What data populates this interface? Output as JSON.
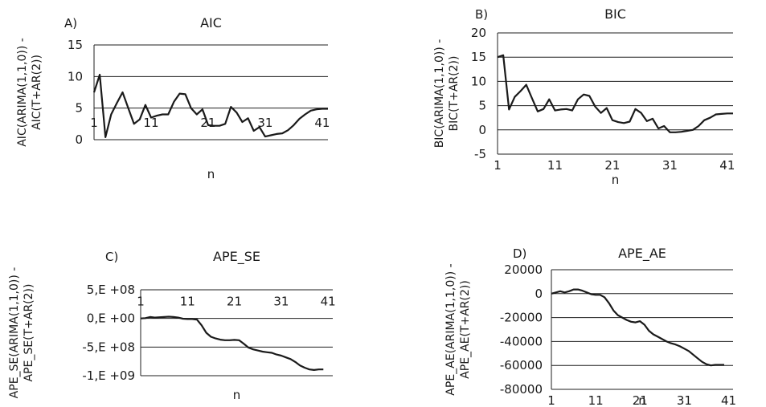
{
  "chart_data": [
    {
      "type": "line",
      "panel_label": "A)",
      "title": "AIC",
      "xlabel": "n",
      "ylabel_lines": [
        "AIC(ARIMA(1,1,0)) -",
        "AIC(T+AR(2))"
      ],
      "x_tick_labels": [
        "1",
        "11",
        "21",
        "31",
        "41"
      ],
      "y_tick_labels": [
        "15",
        "10",
        "5",
        "0"
      ],
      "y_ticks": [
        15,
        10,
        5,
        0
      ],
      "ylim": [
        0,
        15
      ],
      "x_axis_at": 0,
      "x_labels_at": "top",
      "grid": "horizontal",
      "values": [
        7.5,
        10.3,
        0.4,
        4.0,
        5.8,
        7.5,
        5.0,
        2.5,
        3.2,
        5.5,
        3.5,
        3.8,
        4.0,
        4.0,
        6.0,
        7.3,
        7.2,
        5.0,
        4.0,
        4.8,
        2.3,
        2.2,
        2.2,
        2.5,
        5.2,
        4.3,
        2.8,
        3.4,
        1.4,
        2.0,
        0.5,
        0.7,
        0.9,
        1.0,
        1.5,
        2.3,
        3.3,
        4.0,
        4.6,
        4.8,
        4.9,
        4.9
      ]
    },
    {
      "type": "line",
      "panel_label": "B)",
      "title": "BIC",
      "xlabel": "n",
      "ylabel_lines": [
        "BIC(ARIMA(1,1,0)) -",
        "BIC(T+AR(2))"
      ],
      "x_tick_labels": [
        "1",
        "11",
        "21",
        "31",
        "41"
      ],
      "y_tick_labels": [
        "20",
        "15",
        "10",
        "5",
        "0",
        "-5"
      ],
      "y_ticks": [
        20,
        15,
        10,
        5,
        0,
        -5
      ],
      "ylim": [
        -5,
        20
      ],
      "x_axis_at": 0,
      "x_labels_at": "bottom",
      "grid": "horizontal",
      "values": [
        15.0,
        15.4,
        4.2,
        6.8,
        8.0,
        9.3,
        6.5,
        3.8,
        4.3,
        6.3,
        4.0,
        4.2,
        4.3,
        4.0,
        6.3,
        7.3,
        7.0,
        4.8,
        3.5,
        4.5,
        2.0,
        1.6,
        1.4,
        1.7,
        4.3,
        3.5,
        1.8,
        2.3,
        0.3,
        0.8,
        -0.5,
        -0.5,
        -0.4,
        -0.2,
        0.0,
        0.8,
        2.0,
        2.5,
        3.2,
        3.3,
        3.4,
        3.4
      ]
    },
    {
      "type": "line",
      "panel_label": "C)",
      "title": "APE_SE",
      "xlabel": "n",
      "ylabel_lines": [
        "APE_SE(ARIMA(1,1,0)) -",
        "APE_SE(T+AR(2))"
      ],
      "x_tick_labels": [
        "1",
        "11",
        "21",
        "31",
        "41"
      ],
      "y_tick_labels": [
        "5,E +08",
        "0,E +00",
        "-5,E +08",
        "-1,E +09"
      ],
      "y_ticks": [
        500000000,
        0,
        -500000000,
        -1000000000
      ],
      "ylim": [
        -1000000000,
        500000000
      ],
      "x_axis_at": 0,
      "x_labels_at": "top",
      "grid": "horizontal",
      "values": [
        0,
        5000000,
        25000000,
        15000000,
        20000000,
        25000000,
        30000000,
        25000000,
        15000000,
        -5000000,
        -10000000,
        -10000000,
        -20000000,
        -120000000,
        -250000000,
        -320000000,
        -350000000,
        -370000000,
        -380000000,
        -380000000,
        -375000000,
        -380000000,
        -440000000,
        -510000000,
        -540000000,
        -560000000,
        -580000000,
        -590000000,
        -600000000,
        -630000000,
        -650000000,
        -680000000,
        -710000000,
        -760000000,
        -820000000,
        -860000000,
        -890000000,
        -900000000,
        -890000000,
        -890000000
      ]
    },
    {
      "type": "line",
      "panel_label": "D)",
      "title": "APE_AE",
      "xlabel": "n",
      "ylabel_lines": [
        "APE_AE(ARIMA(1,1,0)) -",
        "APE_AE(T+AR(2))"
      ],
      "x_tick_labels": [
        "1",
        "11",
        "21",
        "31",
        "41"
      ],
      "y_tick_labels": [
        "20000",
        "0",
        "-20000",
        "-40000",
        "-60000",
        "-80000"
      ],
      "y_ticks": [
        20000,
        0,
        -20000,
        -40000,
        -60000,
        -80000
      ],
      "ylim": [
        -80000,
        20000
      ],
      "x_axis_at": 0,
      "x_labels_at": "bottom",
      "grid": "horizontal",
      "values": [
        0,
        1000,
        2000,
        1000,
        2000,
        3500,
        3500,
        2500,
        1000,
        -500,
        -1000,
        -1000,
        -3000,
        -8000,
        -14000,
        -18000,
        -20000,
        -22000,
        -23500,
        -24000,
        -23000,
        -26000,
        -31000,
        -34000,
        -36000,
        -38000,
        -40000,
        -41500,
        -42500,
        -44000,
        -46000,
        -48000,
        -51000,
        -54000,
        -57000,
        -59000,
        -60000,
        -59500,
        -59500,
        -59500
      ]
    }
  ]
}
